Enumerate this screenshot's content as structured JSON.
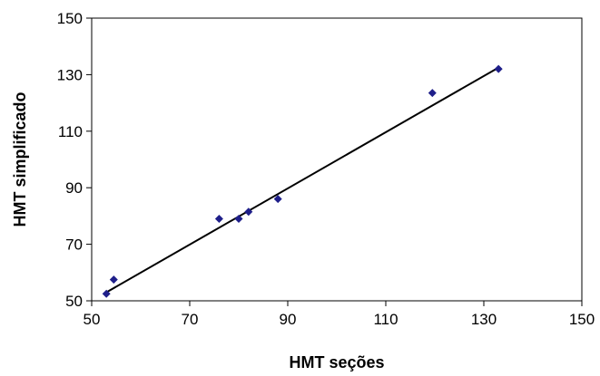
{
  "chart_data": {
    "type": "scatter",
    "title": "",
    "xlabel": "HMT seções",
    "ylabel": "HMT simplificado",
    "xlim": [
      50,
      150
    ],
    "ylim": [
      50,
      150
    ],
    "xticks": [
      50,
      70,
      90,
      110,
      130,
      150
    ],
    "yticks": [
      50,
      70,
      90,
      110,
      130,
      150
    ],
    "grid": false,
    "legend": "none",
    "series": [
      {
        "points": [
          {
            "x": 53,
            "y": 52.5
          },
          {
            "x": 54.5,
            "y": 57.5
          },
          {
            "x": 76,
            "y": 79
          },
          {
            "x": 80,
            "y": 79
          },
          {
            "x": 82,
            "y": 81.5
          },
          {
            "x": 88,
            "y": 86
          },
          {
            "x": 119.5,
            "y": 123.5
          },
          {
            "x": 133,
            "y": 132
          }
        ],
        "color": "#1f1f8a",
        "marker": "diamond"
      }
    ],
    "trendline": {
      "type": "linear",
      "from": {
        "x": 53,
        "y": 53
      },
      "to": {
        "x": 133,
        "y": 132.5
      },
      "color": "#000000"
    },
    "axis_color": "#000000"
  }
}
